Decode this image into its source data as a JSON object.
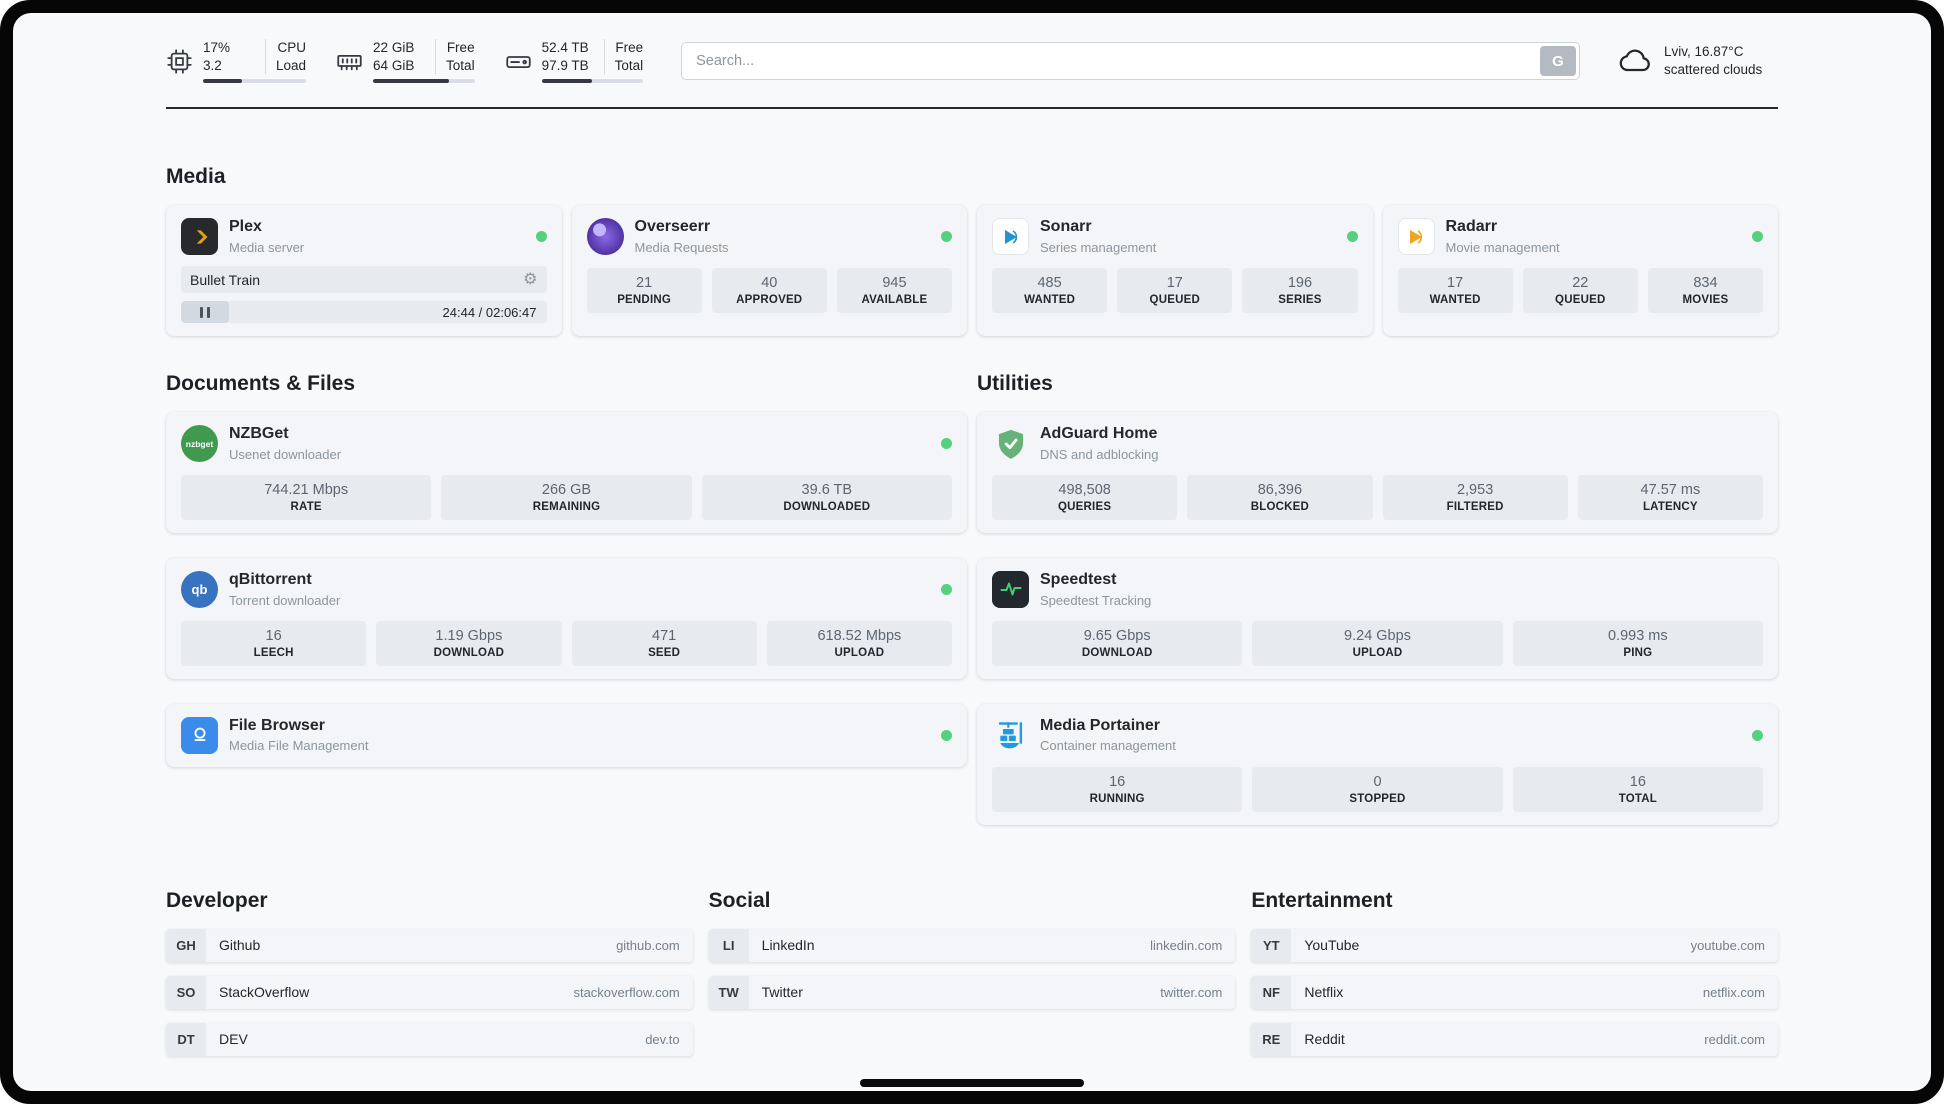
{
  "header": {
    "cpu": {
      "value_top": "17%",
      "value_bottom": "3.2",
      "label_top": "CPU",
      "label_bottom": "Load",
      "fill": 38
    },
    "ram": {
      "value_top": "22 GiB",
      "value_bottom": "64 GiB",
      "label_top": "Free",
      "label_bottom": "Total",
      "fill": 75
    },
    "disk": {
      "value_top": "52.4 TB",
      "value_bottom": "97.9 TB",
      "label_top": "Free",
      "label_bottom": "Total",
      "fill": 50
    },
    "search": {
      "placeholder": "Search...",
      "engine_label": "G"
    },
    "weather": {
      "location": "Lviv, 16.87°C",
      "condition": "scattered clouds"
    }
  },
  "sections": {
    "media": {
      "title": "Media",
      "plex": {
        "name": "Plex",
        "subtitle": "Media server",
        "status": "online",
        "now_playing": "Bullet Train",
        "time": "24:44 / 02:06:47"
      },
      "overseerr": {
        "name": "Overseerr",
        "subtitle": "Media Requests",
        "status": "online",
        "stats": [
          {
            "value": "21",
            "label": "PENDING"
          },
          {
            "value": "40",
            "label": "APPROVED"
          },
          {
            "value": "945",
            "label": "AVAILABLE"
          }
        ]
      },
      "sonarr": {
        "name": "Sonarr",
        "subtitle": "Series management",
        "status": "online",
        "stats": [
          {
            "value": "485",
            "label": "WANTED"
          },
          {
            "value": "17",
            "label": "QUEUED"
          },
          {
            "value": "196",
            "label": "SERIES"
          }
        ]
      },
      "radarr": {
        "name": "Radarr",
        "subtitle": "Movie management",
        "status": "online",
        "stats": [
          {
            "value": "17",
            "label": "WANTED"
          },
          {
            "value": "22",
            "label": "QUEUED"
          },
          {
            "value": "834",
            "label": "MOVIES"
          }
        ]
      }
    },
    "documents": {
      "title": "Documents & Files",
      "nzbget": {
        "name": "NZBGet",
        "subtitle": "Usenet downloader",
        "status": "online",
        "icon_text": "nzbget",
        "stats": [
          {
            "value": "744.21 Mbps",
            "label": "RATE"
          },
          {
            "value": "266 GB",
            "label": "REMAINING"
          },
          {
            "value": "39.6 TB",
            "label": "DOWNLOADED"
          }
        ]
      },
      "qbittorrent": {
        "name": "qBittorrent",
        "subtitle": "Torrent downloader",
        "status": "online",
        "icon_text": "qb",
        "stats": [
          {
            "value": "16",
            "label": "LEECH"
          },
          {
            "value": "1.19 Gbps",
            "label": "DOWNLOAD"
          },
          {
            "value": "471",
            "label": "SEED"
          },
          {
            "value": "618.52 Mbps",
            "label": "UPLOAD"
          }
        ]
      },
      "filebrowser": {
        "name": "File Browser",
        "subtitle": "Media File Management",
        "status": "online"
      }
    },
    "utilities": {
      "title": "Utilities",
      "adguard": {
        "name": "AdGuard Home",
        "subtitle": "DNS and adblocking",
        "stats": [
          {
            "value": "498,508",
            "label": "QUERIES"
          },
          {
            "value": "86,396",
            "label": "BLOCKED"
          },
          {
            "value": "2,953",
            "label": "FILTERED"
          },
          {
            "value": "47.57 ms",
            "label": "LATENCY"
          }
        ]
      },
      "speedtest": {
        "name": "Speedtest",
        "subtitle": "Speedtest Tracking",
        "stats": [
          {
            "value": "9.65 Gbps",
            "label": "DOWNLOAD"
          },
          {
            "value": "9.24 Gbps",
            "label": "UPLOAD"
          },
          {
            "value": "0.993 ms",
            "label": "PING"
          }
        ]
      },
      "portainer": {
        "name": "Media Portainer",
        "subtitle": "Container management",
        "status": "online",
        "stats": [
          {
            "value": "16",
            "label": "RUNNING"
          },
          {
            "value": "0",
            "label": "STOPPED"
          },
          {
            "value": "16",
            "label": "TOTAL"
          }
        ]
      }
    },
    "bookmarks": {
      "developer": {
        "title": "Developer",
        "items": [
          {
            "abbr": "GH",
            "name": "Github",
            "url": "github.com"
          },
          {
            "abbr": "SO",
            "name": "StackOverflow",
            "url": "stackoverflow.com"
          },
          {
            "abbr": "DT",
            "name": "DEV",
            "url": "dev.to"
          }
        ]
      },
      "social": {
        "title": "Social",
        "items": [
          {
            "abbr": "LI",
            "name": "LinkedIn",
            "url": "linkedin.com"
          },
          {
            "abbr": "TW",
            "name": "Twitter",
            "url": "twitter.com"
          }
        ]
      },
      "entertainment": {
        "title": "Entertainment",
        "items": [
          {
            "abbr": "YT",
            "name": "YouTube",
            "url": "youtube.com"
          },
          {
            "abbr": "NF",
            "name": "Netflix",
            "url": "netflix.com"
          },
          {
            "abbr": "RE",
            "name": "Reddit",
            "url": "reddit.com"
          }
        ]
      }
    }
  }
}
